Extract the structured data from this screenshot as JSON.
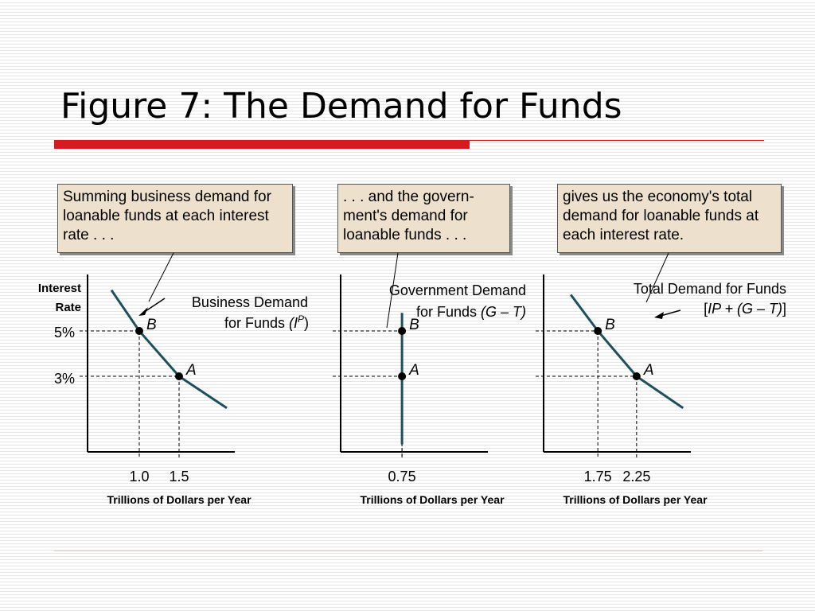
{
  "slide": {
    "title": "Figure 7:  The Demand for Funds",
    "accent_color": "#d71920",
    "box_fill": "#ede0cc",
    "curve_color": "#1e4f5c"
  },
  "callouts": {
    "business": "Summing business demand for loanable funds at each interest rate . . .",
    "government": ". . . and the govern-ment's demand for loanable funds . . .",
    "total": "gives us the economy's total demand for loanable funds at each interest rate."
  },
  "chart_data": [
    {
      "type": "line",
      "ylabel": [
        "Interest",
        "Rate"
      ],
      "yticks": [
        "5%",
        "3%"
      ],
      "xlabel": "Trillions of Dollars per Year",
      "curve_label": [
        "Business Demand",
        "for Funds (I",
        "P",
        ")"
      ],
      "curve_label_parts": {
        "line1": "Business Demand",
        "line2_plain": "for Funds ",
        "line2_italic": "(I",
        "superscript": "P",
        "close": ")"
      },
      "points": [
        {
          "label": "B",
          "x": 1.0,
          "y": 5,
          "x_label": "1.0"
        },
        {
          "label": "A",
          "x": 1.5,
          "y": 3,
          "x_label": "1.5"
        }
      ],
      "curve": [
        [
          0.65,
          6.8
        ],
        [
          1.0,
          5
        ],
        [
          1.5,
          3
        ],
        [
          2.1,
          1.6
        ]
      ]
    },
    {
      "type": "line",
      "xlabel": "Trillions of Dollars per Year",
      "curve_label_parts": {
        "line1": "Government Demand",
        "line2_plain": "for Funds ",
        "line2_italic": "(G – T)"
      },
      "points": [
        {
          "label": "B",
          "x": 0.75,
          "y": 5,
          "x_label": "0.75"
        },
        {
          "label": "A",
          "x": 0.75,
          "y": 3,
          "x_label": ""
        }
      ],
      "curve": [
        [
          0.75,
          5.8
        ],
        [
          0.75,
          0
        ]
      ]
    },
    {
      "type": "line",
      "xlabel": "Trillions of Dollars per Year",
      "curve_label_parts": {
        "line1": "Total Demand for Funds",
        "line2_italic": "IP + (G – T)",
        "open": "[",
        "close": "]"
      },
      "points": [
        {
          "label": "B",
          "x": 1.75,
          "y": 5,
          "x_label": "1.75"
        },
        {
          "label": "A",
          "x": 2.25,
          "y": 3,
          "x_label": "2.25"
        }
      ],
      "curve": [
        [
          1.4,
          6.6
        ],
        [
          1.75,
          5
        ],
        [
          2.25,
          3
        ],
        [
          2.85,
          1.6
        ]
      ]
    }
  ]
}
